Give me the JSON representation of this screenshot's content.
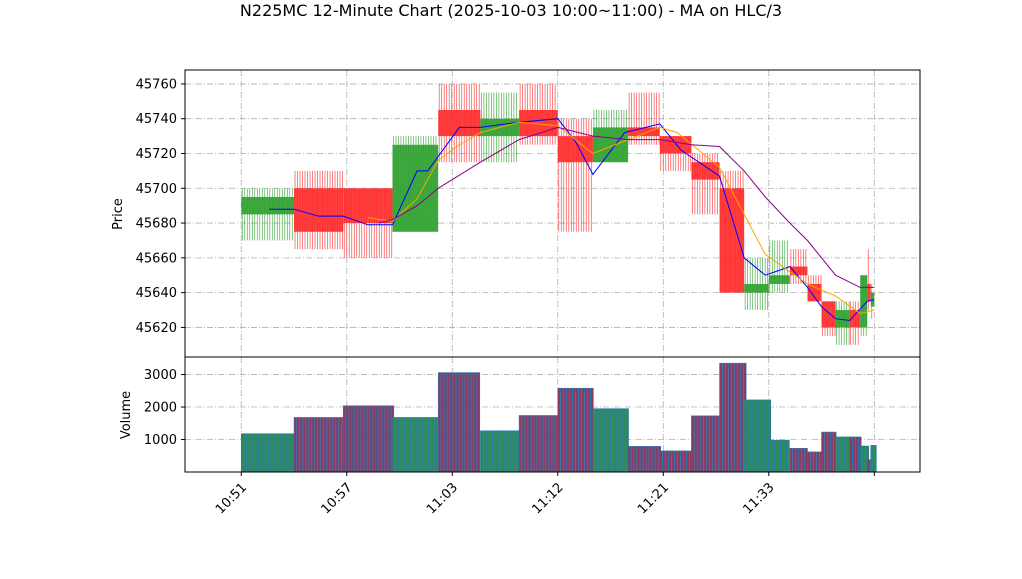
{
  "chart_data": {
    "type": "candlestick",
    "title": "N225MC 12-Minute Chart (2025-10-03 10:00~11:00) - MA on HLC/3",
    "price_axis": {
      "ylabel": "Price",
      "ylim": [
        45603,
        45768
      ],
      "ticks": [
        45620,
        45640,
        45660,
        45680,
        45700,
        45720,
        45740,
        45760
      ]
    },
    "volume_axis": {
      "ylabel": "Volume",
      "ylim": [
        0,
        3540
      ],
      "ticks": [
        1000,
        2000,
        3000
      ]
    },
    "x_axis": {
      "xlim": [
        10.0,
        29.0
      ],
      "ticks": [
        {
          "x": 11,
          "label": "10:51"
        },
        {
          "x": 14,
          "label": "10:57"
        },
        {
          "x": 17,
          "label": "11:03"
        },
        {
          "x": 20,
          "label": "11:12"
        },
        {
          "x": 23,
          "label": "11:21"
        },
        {
          "x": 26,
          "label": "11:33"
        },
        {
          "x": 29,
          "label": ""
        }
      ]
    },
    "grid": true,
    "colors": {
      "up": "#2ca02c",
      "down": "#ff2a2a",
      "ma_short": "#0000ff",
      "ma_mid": "#ffa500",
      "ma_long": "#8b008b",
      "volume_bar": "#8b3a62",
      "volume_edge": "#1f77b4"
    },
    "candles": [
      {
        "x0": 11.0,
        "x1": 12.5,
        "open": 45685,
        "high": 45700,
        "low": 45670,
        "close": 45695,
        "volume": 1180
      },
      {
        "x0": 12.5,
        "x1": 13.9,
        "open": 45700,
        "high": 45710,
        "low": 45665,
        "close": 45675,
        "volume": 1680
      },
      {
        "x0": 13.9,
        "x1": 15.3,
        "open": 45700,
        "high": 45700,
        "low": 45660,
        "close": 45680,
        "volume": 2040
      },
      {
        "x0": 15.3,
        "x1": 16.6,
        "open": 45675,
        "high": 45730,
        "low": 45675,
        "close": 45725,
        "volume": 1680
      },
      {
        "x0": 16.6,
        "x1": 17.8,
        "open": 45745,
        "high": 45760,
        "low": 45715,
        "close": 45730,
        "volume": 3060
      },
      {
        "x0": 17.8,
        "x1": 18.9,
        "open": 45730,
        "high": 45755,
        "low": 45715,
        "close": 45740,
        "volume": 1270
      },
      {
        "x0": 18.9,
        "x1": 20.0,
        "open": 45745,
        "high": 45760,
        "low": 45725,
        "close": 45730,
        "volume": 1740
      },
      {
        "x0": 20.0,
        "x1": 21.0,
        "open": 45730,
        "high": 45740,
        "low": 45675,
        "close": 45715,
        "volume": 2580
      },
      {
        "x0": 21.0,
        "x1": 22.0,
        "open": 45715,
        "high": 45745,
        "low": 45715,
        "close": 45735,
        "volume": 1950
      },
      {
        "x0": 22.0,
        "x1": 22.9,
        "open": 45735,
        "high": 45755,
        "low": 45725,
        "close": 45730,
        "volume": 790
      },
      {
        "x0": 22.9,
        "x1": 23.8,
        "open": 45730,
        "high": 45730,
        "low": 45710,
        "close": 45720,
        "volume": 650
      },
      {
        "x0": 23.8,
        "x1": 24.6,
        "open": 45715,
        "high": 45720,
        "low": 45685,
        "close": 45705,
        "volume": 1730
      },
      {
        "x0": 24.6,
        "x1": 25.3,
        "open": 45700,
        "high": 45710,
        "low": 45640,
        "close": 45640,
        "volume": 3350
      },
      {
        "x0": 25.3,
        "x1": 26.0,
        "open": 45640,
        "high": 45660,
        "low": 45630,
        "close": 45645,
        "volume": 2220
      },
      {
        "x0": 26.0,
        "x1": 26.6,
        "open": 45645,
        "high": 45670,
        "low": 45640,
        "close": 45650,
        "volume": 980
      },
      {
        "x0": 26.6,
        "x1": 27.1,
        "open": 45655,
        "high": 45665,
        "low": 45645,
        "close": 45650,
        "volume": 730
      },
      {
        "x0": 27.1,
        "x1": 27.5,
        "open": 45645,
        "high": 45650,
        "low": 45635,
        "close": 45635,
        "volume": 620
      },
      {
        "x0": 27.5,
        "x1": 27.9,
        "open": 45635,
        "high": 45635,
        "low": 45615,
        "close": 45620,
        "volume": 1230
      },
      {
        "x0": 27.9,
        "x1": 28.3,
        "open": 45620,
        "high": 45635,
        "low": 45610,
        "close": 45630,
        "volume": 1080
      },
      {
        "x0": 28.3,
        "x1": 28.6,
        "open": 45630,
        "high": 45635,
        "low": 45610,
        "close": 45620,
        "volume": 1080
      },
      {
        "x0": 28.6,
        "x1": 28.8,
        "open": 45620,
        "high": 45650,
        "low": 45615,
        "close": 45650,
        "volume": 800
      },
      {
        "x0": 28.8,
        "x1": 28.9,
        "open": 45645,
        "high": 45665,
        "low": 45630,
        "close": 45635,
        "volume": 380
      },
      {
        "x0": 28.9,
        "x1": 29.0,
        "open": 45632,
        "high": 45645,
        "low": 45625,
        "close": 45640,
        "volume": 820
      }
    ],
    "ma_series": [
      {
        "color_key": "ma_short",
        "points": [
          [
            11.8,
            45688
          ],
          [
            12.5,
            45688
          ],
          [
            13.2,
            45684
          ],
          [
            13.9,
            45684
          ],
          [
            14.6,
            45679
          ],
          [
            15.3,
            45679
          ],
          [
            16.0,
            45710
          ],
          [
            16.3,
            45710
          ],
          [
            17.2,
            45735
          ],
          [
            17.8,
            45735
          ],
          [
            18.9,
            45738
          ],
          [
            20.0,
            45740
          ],
          [
            20.5,
            45727
          ],
          [
            21.0,
            45708
          ],
          [
            21.9,
            45732
          ],
          [
            22.9,
            45737
          ],
          [
            23.5,
            45722
          ],
          [
            24.6,
            45707
          ],
          [
            25.3,
            45660
          ],
          [
            25.9,
            45650
          ],
          [
            26.6,
            45655
          ],
          [
            27.1,
            45643
          ],
          [
            27.5,
            45632
          ],
          [
            27.9,
            45625
          ],
          [
            28.3,
            45624
          ],
          [
            28.8,
            45635
          ],
          [
            29.0,
            45636
          ]
        ]
      },
      {
        "color_key": "ma_mid",
        "points": [
          [
            14.6,
            45683
          ],
          [
            15.3,
            45681
          ],
          [
            16.0,
            45694
          ],
          [
            16.6,
            45716
          ],
          [
            17.2,
            45725
          ],
          [
            17.8,
            45732
          ],
          [
            18.9,
            45738
          ],
          [
            20.0,
            45736
          ],
          [
            21.0,
            45720
          ],
          [
            22.0,
            45728
          ],
          [
            22.9,
            45735
          ],
          [
            23.4,
            45732
          ],
          [
            24.6,
            45712
          ],
          [
            25.3,
            45685
          ],
          [
            25.9,
            45662
          ],
          [
            26.6,
            45652
          ],
          [
            27.1,
            45645
          ],
          [
            27.9,
            45638
          ],
          [
            28.6,
            45628
          ],
          [
            29.0,
            45630
          ]
        ]
      },
      {
        "color_key": "ma_long",
        "points": [
          [
            14.9,
            45680
          ],
          [
            15.3,
            45682
          ],
          [
            16.0,
            45690
          ],
          [
            16.6,
            45700
          ],
          [
            17.8,
            45715
          ],
          [
            18.9,
            45728
          ],
          [
            20.0,
            45735
          ],
          [
            21.0,
            45730
          ],
          [
            22.0,
            45728
          ],
          [
            22.9,
            45728
          ],
          [
            23.8,
            45725
          ],
          [
            24.6,
            45724
          ],
          [
            25.3,
            45710
          ],
          [
            25.9,
            45695
          ],
          [
            26.6,
            45680
          ],
          [
            27.1,
            45670
          ],
          [
            27.9,
            45650
          ],
          [
            28.6,
            45643
          ],
          [
            29.0,
            45643
          ]
        ]
      }
    ]
  }
}
